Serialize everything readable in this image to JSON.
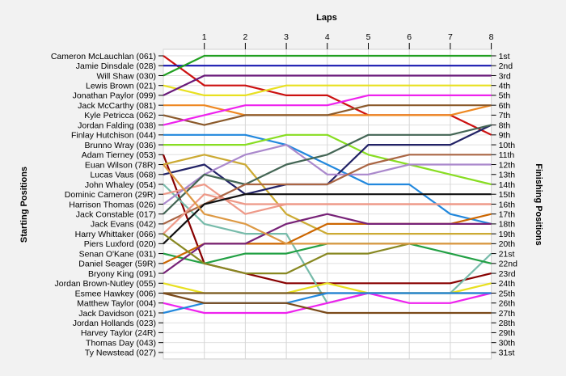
{
  "chart_data": {
    "type": "line",
    "title": "",
    "xlabel": "Laps",
    "ylabel_left": "Starting Positions",
    "ylabel_right": "Finishing Positions",
    "x": [
      0,
      1,
      2,
      3,
      4,
      5,
      6,
      7,
      8
    ],
    "lap_tick_labels": [
      "1",
      "2",
      "3",
      "4",
      "5",
      "6",
      "7",
      "8"
    ],
    "position_count": 31,
    "grid": true,
    "starting_labels": [
      "Cameron McLauchlan (061)",
      "Jamie Dinsdale (028)",
      "Will Shaw (030)",
      "Lewis Brown (021)",
      "Jonathan Paylor (099)",
      "Jack McCarthy (081)",
      "Kyle Petricca (062)",
      "Jordan Falding (038)",
      "Finlay Hutchison (044)",
      "Brunno Wray (036)",
      "Adam Tierney (053)",
      "Euan Wilson (78R)",
      "Lucas Vaus (068)",
      "John Whaley (054)",
      "Dominic Cameron (29R)",
      "Harrison Thomas (026)",
      "Jack Constable (017)",
      "Jack Evans (042)",
      "Harry Whittaker (066)",
      "Piers Luxford (020)",
      "Senan O'Kane (031)",
      "Daniel Seager (59R)",
      "Bryony King (091)",
      "Jordan Brown-Nutley (055)",
      "Esmee Hawkey (006)",
      "Matthew Taylor (004)",
      "Jack Davidson (021)",
      "Jordan Hollands (023)",
      "Harvey Taylor (24R)",
      "Thomas Day (043)",
      "Ty Newstead (027)"
    ],
    "finishing_labels": [
      "1st",
      "2nd",
      "3rd",
      "4th",
      "5th",
      "6th",
      "7th",
      "8th",
      "9th",
      "10th",
      "11th",
      "12th",
      "13th",
      "14th",
      "15th",
      "16th",
      "17th",
      "18th",
      "19th",
      "20th",
      "21st",
      "22nd",
      "23rd",
      "24th",
      "25th",
      "26th",
      "27th",
      "28th",
      "29th",
      "30th",
      "31st"
    ],
    "series": [
      {
        "values": [
          1,
          4,
          4,
          5,
          5,
          7,
          7,
          7,
          9
        ],
        "color": "#cc1111"
      },
      {
        "values": [
          2,
          2,
          2,
          2,
          2,
          2,
          2,
          2,
          2
        ],
        "color": "#1a1ab0"
      },
      {
        "values": [
          3,
          1,
          1,
          1,
          1,
          1,
          1,
          1,
          1
        ],
        "color": "#22a022"
      },
      {
        "values": [
          4,
          5,
          5,
          4,
          4,
          4,
          4,
          4,
          4
        ],
        "color": "#e8e020"
      },
      {
        "values": [
          5,
          3,
          3,
          3,
          3,
          3,
          3,
          3,
          3
        ],
        "color": "#6a1a7a"
      },
      {
        "values": [
          6,
          6,
          7,
          7,
          7,
          7,
          7,
          7,
          6
        ],
        "color": "#ee8822"
      },
      {
        "values": [
          7,
          8,
          7,
          7,
          7,
          6,
          6,
          6,
          6
        ],
        "color": "#8b5a2b"
      },
      {
        "values": [
          8,
          7,
          6,
          6,
          6,
          5,
          5,
          5,
          5
        ],
        "color": "#ee22ee"
      },
      {
        "values": [
          9,
          9,
          9,
          10,
          12,
          14,
          14,
          17,
          18
        ],
        "color": "#2288dd"
      },
      {
        "values": [
          10,
          10,
          10,
          9,
          9,
          11,
          12,
          13,
          14
        ],
        "color": "#88dd22"
      },
      {
        "values": [
          11,
          22,
          23,
          24,
          24,
          24,
          24,
          24,
          23
        ],
        "color": "#880000"
      },
      {
        "values": [
          12,
          11,
          12,
          17,
          19,
          19,
          19,
          19,
          19
        ],
        "color": "#ccaa33"
      },
      {
        "values": [
          13,
          12,
          15,
          14,
          14,
          10,
          10,
          10,
          8
        ],
        "color": "#222266"
      },
      {
        "values": [
          14,
          18,
          19,
          19,
          26,
          25,
          25,
          25,
          21
        ],
        "color": "#77bbaa"
      },
      {
        "values": [
          15,
          14,
          17,
          16,
          16,
          16,
          16,
          16,
          16
        ],
        "color": "#ee9988"
      },
      {
        "values": [
          16,
          13,
          11,
          10,
          13,
          13,
          12,
          12,
          12
        ],
        "color": "#aa88cc"
      },
      {
        "values": [
          17,
          13,
          14,
          12,
          11,
          9,
          9,
          9,
          8
        ],
        "color": "#446655"
      },
      {
        "values": [
          18,
          16,
          14,
          14,
          14,
          12,
          11,
          11,
          11
        ],
        "color": "#aa6644"
      },
      {
        "values": [
          19,
          15,
          16,
          16,
          16,
          16,
          16,
          16,
          16
        ],
        "color": "#ee9988"
      },
      {
        "values": [
          20,
          16,
          15,
          15,
          15,
          15,
          15,
          15,
          15
        ],
        "color": "#111111"
      },
      {
        "values": [
          21,
          22,
          21,
          21,
          20,
          20,
          20,
          21,
          22
        ],
        "color": "#22a044"
      },
      {
        "values": [
          22,
          20,
          20,
          20,
          18,
          18,
          18,
          18,
          17
        ],
        "color": "#cc6600"
      },
      {
        "values": [
          23,
          20,
          20,
          18,
          17,
          18,
          18,
          18,
          18
        ],
        "color": "#772277"
      },
      {
        "values": [
          24,
          25,
          25,
          25,
          24,
          25,
          25,
          25,
          24
        ],
        "color": "#e8e020"
      },
      {
        "values": [
          25,
          25,
          25,
          25,
          25,
          25,
          25,
          25,
          25
        ],
        "color": "#7a5a2a"
      },
      {
        "values": [
          26,
          27,
          27,
          27,
          26,
          25,
          26,
          26,
          25
        ],
        "color": "#ee22ee"
      },
      {
        "values": [
          27,
          26,
          26,
          26,
          25,
          25,
          25,
          25,
          25
        ],
        "color": "#2288dd"
      },
      {
        "values": [
          25,
          26,
          26,
          26,
          27,
          27,
          27,
          27,
          27
        ],
        "color": "#7a4a1a"
      },
      {
        "values": [
          19,
          22,
          23,
          23,
          21,
          21,
          20,
          20,
          20
        ],
        "color": "#888822"
      },
      {
        "values": [
          12,
          17,
          18,
          20,
          20,
          20,
          20,
          20,
          20
        ],
        "color": "#dd9944"
      }
    ]
  }
}
